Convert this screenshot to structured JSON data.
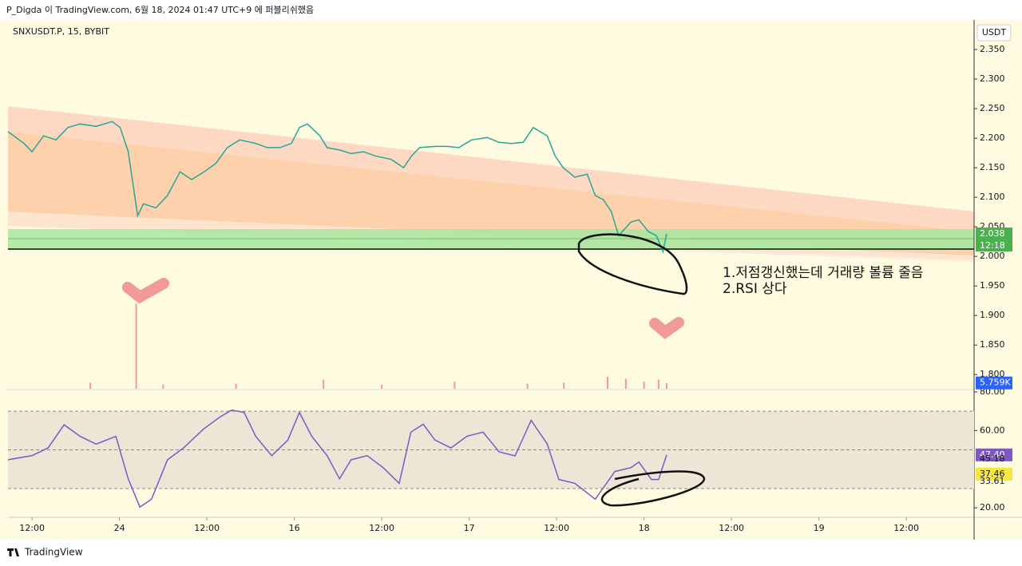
{
  "header": {
    "publish_note": "P_Digda 이 TradingView.com, 6월 18, 2024 01:47 UTC+9 에 퍼블리쉬했음",
    "brand": "TradingView"
  },
  "annotations": [
    "1.저점갱신했는데 거래량 볼륨 줄음",
    "2.RSI 상다"
  ],
  "chart_data": [
    {
      "type": "line",
      "title": "SNXUSDT.P, 15, BYBIT",
      "currency": "USDT",
      "color": "#26a69a",
      "x": [
        8.7,
        10.9,
        12,
        13.6,
        15.3,
        16.9,
        18.6,
        20.8,
        23.0,
        24.1,
        25.2,
        26.5,
        27.3,
        29.0,
        30.6,
        32.3,
        33.9,
        35.6,
        37.2,
        38.8,
        40.5,
        42.7,
        44.3,
        46.0,
        47.6,
        48.7,
        49.8,
        51.5,
        52.5,
        54.2,
        55.8,
        57.5,
        59.1,
        61.3,
        63.0,
        64.1,
        65.2,
        67.3,
        69.0,
        70.6,
        72.3,
        74.5,
        76.1,
        77.8,
        79.4,
        80.8,
        82.7,
        83.8,
        84.9,
        86.5,
        88.2,
        89.3,
        90.4,
        91.5,
        92.5,
        94.2,
        95.3,
        96.6,
        97.7,
        98.6,
        99.1
      ],
      "values": [
        2.211,
        2.191,
        2.177,
        2.204,
        2.197,
        2.218,
        2.224,
        2.22,
        2.228,
        2.218,
        2.177,
        2.069,
        2.089,
        2.082,
        2.103,
        2.143,
        2.13,
        2.143,
        2.157,
        2.184,
        2.197,
        2.191,
        2.184,
        2.184,
        2.191,
        2.218,
        2.224,
        2.204,
        2.184,
        2.18,
        2.174,
        2.177,
        2.17,
        2.164,
        2.15,
        2.17,
        2.184,
        2.186,
        2.186,
        2.184,
        2.197,
        2.201,
        2.193,
        2.191,
        2.193,
        2.218,
        2.204,
        2.17,
        2.15,
        2.134,
        2.139,
        2.103,
        2.096,
        2.076,
        2.035,
        2.058,
        2.062,
        2.042,
        2.035,
        2.008,
        2.038
      ],
      "last_price": 2.038,
      "countdown": "12:18",
      "xlim": [
        8.7,
        141.3
      ],
      "xticks": [
        {
          "value": 12,
          "label": "12:00"
        },
        24,
        {
          "value": 36,
          "label": "12:00"
        },
        {
          "value": 48,
          "label": "16"
        },
        {
          "value": 60,
          "label": "12:00"
        },
        {
          "value": 72,
          "label": "17"
        },
        {
          "value": 84,
          "label": "12:00"
        },
        {
          "value": 96,
          "label": "18"
        },
        {
          "value": 108,
          "label": "12:00"
        },
        {
          "value": 120,
          "label": "19"
        },
        {
          "value": 132,
          "label": "12:00"
        }
      ],
      "ylim": [
        1.776,
        2.4
      ],
      "yticks": [
        {
          "value": 1.8,
          "label": "1.800"
        },
        {
          "value": 1.85,
          "label": "1.850"
        },
        {
          "value": 1.9,
          "label": "1.900"
        },
        {
          "value": 1.95,
          "label": "1.950"
        },
        {
          "value": 2.0,
          "label": "2.000"
        },
        {
          "value": 2.05,
          "label": "2.050"
        },
        {
          "value": 2.1,
          "label": "2.100"
        },
        {
          "value": 2.15,
          "label": "2.150"
        },
        {
          "value": 2.2,
          "label": "2.200"
        },
        {
          "value": 2.25,
          "label": "2.250"
        },
        {
          "value": 2.3,
          "label": "2.300"
        },
        {
          "value": 2.35,
          "label": "2.350"
        }
      ]
    },
    {
      "type": "bar",
      "color": "#ef9a9a",
      "x": [
        20,
        30,
        26.3,
        40,
        52,
        60,
        70,
        80,
        85,
        91,
        93.5,
        96,
        98,
        99.1
      ],
      "values": [
        6,
        4,
        84,
        5,
        9,
        4,
        7,
        5,
        6,
        12,
        10,
        7,
        9,
        5.759
      ],
      "ylim": [
        0,
        100
      ],
      "last_label": {
        "value": 5.759,
        "label": "5.759K"
      }
    },
    {
      "type": "line",
      "color": "#7e57c2",
      "x": [
        8.7,
        12,
        14.2,
        16.4,
        18.6,
        20.8,
        23.5,
        25.2,
        26.8,
        28.4,
        30.6,
        32.8,
        35.6,
        37.8,
        39.4,
        41.1,
        42.7,
        44.9,
        47.1,
        48.7,
        50.4,
        52.5,
        54.2,
        55.8,
        58.0,
        60.2,
        62.4,
        64.0,
        65.7,
        67.3,
        69.5,
        71.7,
        73.9,
        76.1,
        78.3,
        80.5,
        82.7,
        84.3,
        86.5,
        89.3,
        92.0,
        94.2,
        95.3,
        97.0,
        98.0,
        99.1
      ],
      "values": [
        44.9,
        47,
        51,
        63,
        57,
        53,
        57,
        35,
        20.4,
        24.5,
        44.9,
        51,
        61,
        67,
        70.6,
        69.4,
        57,
        47,
        55,
        69.4,
        57,
        47,
        35,
        44.9,
        47,
        40.8,
        32.7,
        59.2,
        63.3,
        55.1,
        51,
        57.1,
        59.2,
        49,
        46.9,
        65.3,
        53.1,
        34.7,
        32.7,
        24.5,
        38.8,
        40.8,
        43.7,
        34.7,
        34.7,
        47.4
      ],
      "ylim": [
        15.1,
        80.8
      ],
      "levels": [
        70,
        50,
        30
      ],
      "yticks": [
        {
          "value": 80,
          "label": "80.00"
        },
        {
          "value": 60,
          "label": "60.00"
        },
        {
          "value": 20,
          "label": "20.00"
        }
      ],
      "markers": [
        {
          "value": 47.4,
          "label": "47.40",
          "color": "#7e57c2"
        },
        {
          "value": 45.18,
          "label": "45.18"
        },
        {
          "value": 37.46,
          "label": "37.46",
          "color": "#f5e642"
        },
        {
          "value": 33.61,
          "label": "33.61"
        }
      ]
    }
  ]
}
